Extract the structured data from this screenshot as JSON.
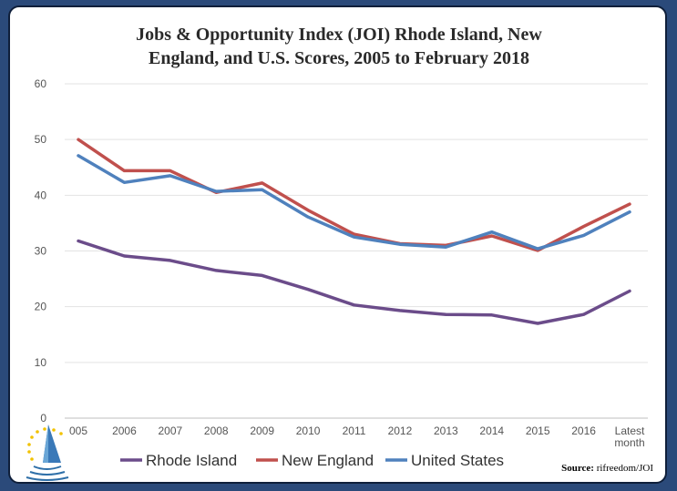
{
  "chart_data": {
    "type": "line",
    "title_lines": [
      "Jobs & Opportunity Index (JOI) Rhode Island, New",
      "England, and U.S. Scores, 2005 to February 2018"
    ],
    "categories": [
      "005",
      "2006",
      "2007",
      "2008",
      "2009",
      "2010",
      "2011",
      "2012",
      "2013",
      "2014",
      "2015",
      "2016",
      "Latest month"
    ],
    "category_lines": [
      [
        "005"
      ],
      [
        "2006"
      ],
      [
        "2007"
      ],
      [
        "2008"
      ],
      [
        "2009"
      ],
      [
        "2010"
      ],
      [
        "2011"
      ],
      [
        "2012"
      ],
      [
        "2013"
      ],
      [
        "2014"
      ],
      [
        "2015"
      ],
      [
        "2016"
      ],
      [
        "Latest",
        "month"
      ]
    ],
    "ylim": [
      0,
      60
    ],
    "yticks": [
      0,
      10,
      20,
      30,
      40,
      50,
      60
    ],
    "grid": true,
    "legend_position": "bottom",
    "series": [
      {
        "name": "Rhode Island",
        "color": "#6b4c8a",
        "values": [
          31.8,
          29.1,
          28.3,
          26.5,
          25.6,
          23.1,
          20.3,
          19.3,
          18.6,
          18.5,
          17.0,
          18.6,
          22.8
        ]
      },
      {
        "name": "New England",
        "color": "#c0504d",
        "values": [
          50.0,
          44.4,
          44.4,
          40.5,
          42.2,
          37.3,
          33.0,
          31.3,
          31.0,
          32.7,
          30.1,
          34.4,
          38.4
        ]
      },
      {
        "name": "United States",
        "color": "#4f81bd",
        "values": [
          47.1,
          42.3,
          43.5,
          40.7,
          41.0,
          36.1,
          32.5,
          31.2,
          30.7,
          33.4,
          30.4,
          32.8,
          37.0
        ]
      }
    ],
    "source_label": "Source:",
    "source_text": " rifreedom/JOI"
  },
  "logo": {
    "name": "sailboat-stars-logo"
  }
}
